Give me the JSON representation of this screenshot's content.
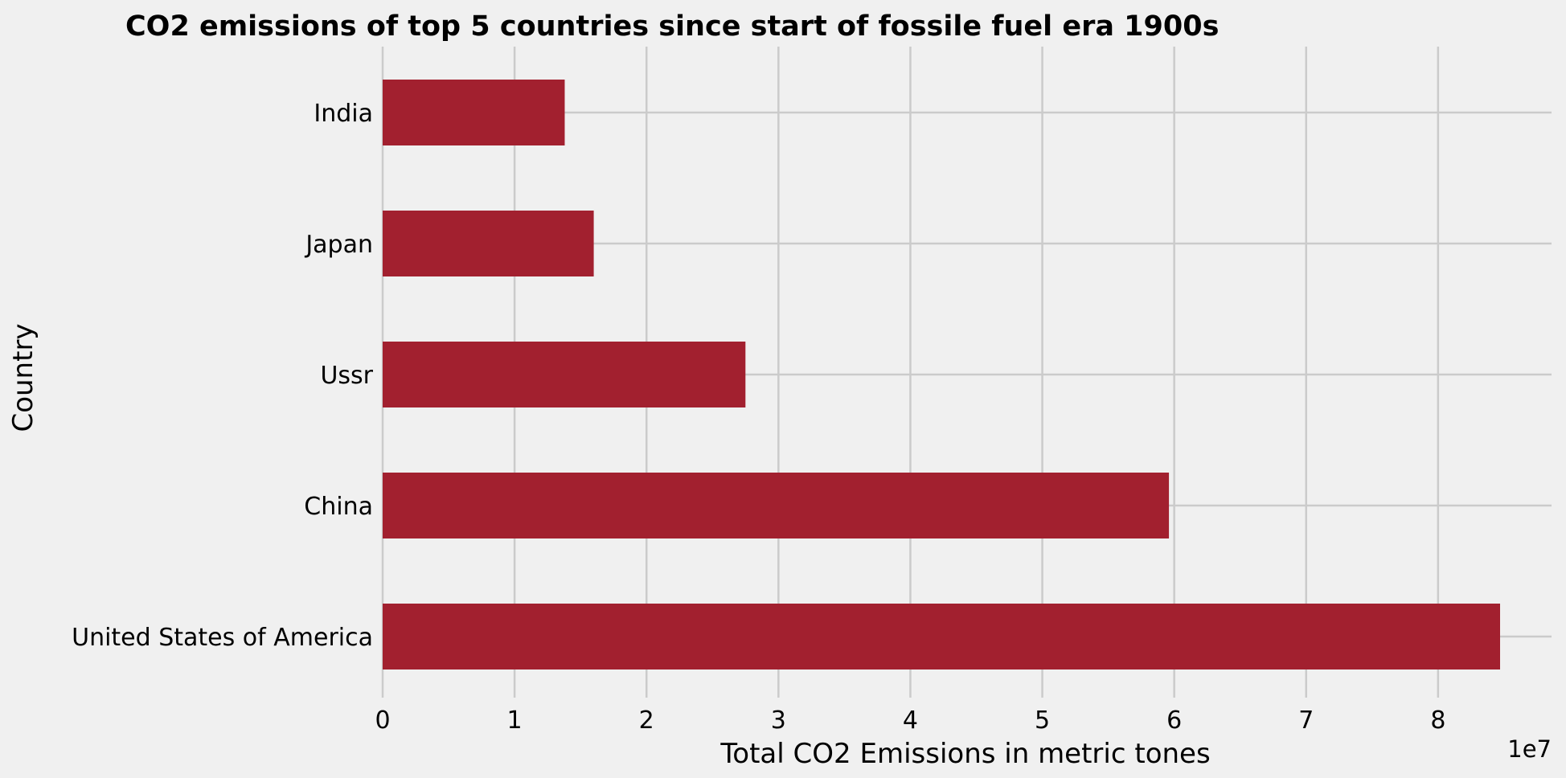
{
  "chart_data": {
    "type": "bar",
    "orientation": "horizontal",
    "title": "CO2 emissions of top 5 countries since start of fossile fuel era 1900s",
    "xlabel": "Total CO2 Emissions in metric tones",
    "ylabel": "Country",
    "x_offset_label": "1e7",
    "categories": [
      "United States of America",
      "China",
      "Ussr",
      "Japan",
      "India"
    ],
    "values": [
      84700000,
      59600000,
      27500000,
      16000000,
      13800000
    ],
    "xlim": [
      0,
      88600000
    ],
    "xticks": [
      0,
      10000000,
      20000000,
      30000000,
      40000000,
      50000000,
      60000000,
      70000000,
      80000000
    ],
    "xtick_labels": [
      "0",
      "1",
      "2",
      "3",
      "4",
      "5",
      "6",
      "7",
      "8"
    ],
    "grid": true,
    "bar_color": "#a2202f",
    "background_color": "#f0f0f0",
    "grid_color": "#cbcbcb"
  }
}
